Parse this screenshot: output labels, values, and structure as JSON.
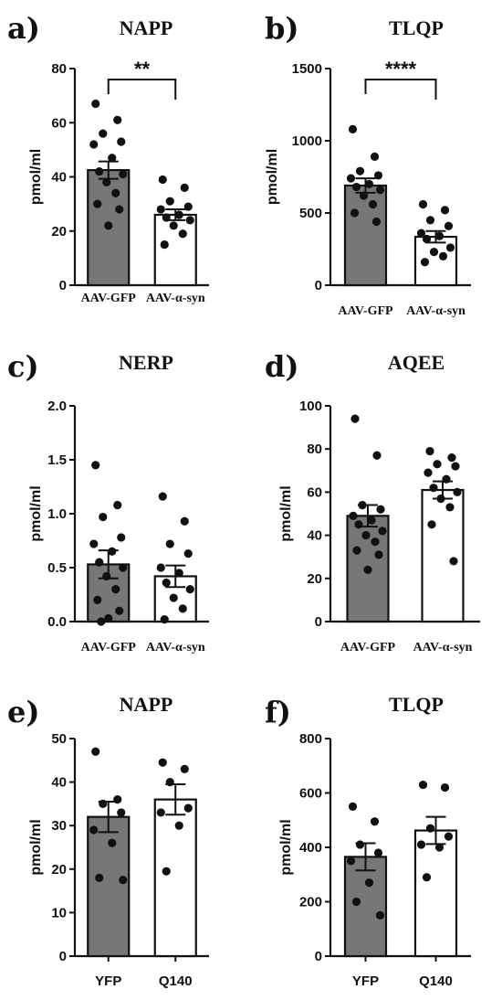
{
  "chart_data": [
    {
      "letter": "a)",
      "title": "NAPP",
      "type": "bar",
      "ylabel": "pmol/ml",
      "ylim": [
        0,
        80
      ],
      "yticks": [
        0,
        20,
        40,
        60,
        80
      ],
      "categories": [
        "AAV-GFP",
        "AAV-α-syn"
      ],
      "cat_style": "serif",
      "means": [
        42.5,
        26
      ],
      "sem": [
        3.2,
        2
      ],
      "bar_fill": [
        "#777777",
        "#ffffff"
      ],
      "points": [
        [
          67,
          61,
          56,
          53,
          52,
          47,
          42,
          41,
          38,
          34,
          30,
          28,
          22
        ],
        [
          39,
          36,
          31,
          29,
          28,
          26,
          25,
          24,
          22,
          19,
          15
        ]
      ],
      "significance": "**"
    },
    {
      "letter": "b)",
      "title": "TLQP",
      "type": "bar",
      "ylabel": "pmol/ml",
      "ylim": [
        0,
        1500
      ],
      "yticks": [
        0,
        500,
        1000,
        1500
      ],
      "categories": [
        "AAV-GFP",
        "AAV-α-syn"
      ],
      "cat_style": "serif",
      "means": [
        690,
        335
      ],
      "sem": [
        50,
        40
      ],
      "bar_fill": [
        "#777777",
        "#ffffff"
      ],
      "points": [
        [
          1080,
          890,
          790,
          760,
          740,
          700,
          680,
          660,
          620,
          560,
          500,
          440
        ],
        [
          560,
          520,
          450,
          410,
          360,
          340,
          320,
          260,
          230,
          200,
          160
        ]
      ],
      "significance": "****"
    },
    {
      "letter": "c)",
      "title": "NERP",
      "type": "bar",
      "ylabel": "pmol/ml",
      "ylim": [
        0,
        2.0
      ],
      "yticks": [
        "0.0",
        "0.5",
        "1.0",
        "1.5",
        "2.0"
      ],
      "categories": [
        "AAV-GFP",
        "AAV-α-syn"
      ],
      "cat_style": "serif",
      "means": [
        0.53,
        0.42
      ],
      "sem": [
        0.13,
        0.1
      ],
      "bar_fill": [
        "#777777",
        "#ffffff"
      ],
      "points": [
        [
          1.45,
          1.08,
          0.97,
          0.78,
          0.72,
          0.65,
          0.55,
          0.5,
          0.42,
          0.3,
          0.2,
          0.1,
          0.03,
          0.0
        ],
        [
          1.16,
          0.93,
          0.72,
          0.63,
          0.5,
          0.45,
          0.36,
          0.3,
          0.22,
          0.12,
          0.02
        ]
      ],
      "significance": ""
    },
    {
      "letter": "d)",
      "title": "AQEE",
      "type": "bar",
      "ylabel": "pmol/ml",
      "ylim": [
        0,
        100
      ],
      "yticks": [
        0,
        20,
        40,
        60,
        80,
        100
      ],
      "categories": [
        "AAV-GFP",
        "AAV-α-syn"
      ],
      "cat_style": "serif",
      "means": [
        49,
        61
      ],
      "sem": [
        5,
        4
      ],
      "bar_fill": [
        "#777777",
        "#ffffff"
      ],
      "points": [
        [
          94,
          77,
          54,
          52,
          49,
          47,
          45,
          42,
          40,
          37,
          33,
          31,
          24
        ],
        [
          79,
          76,
          73,
          72,
          69,
          66,
          62,
          60,
          57,
          53,
          45,
          28
        ]
      ],
      "significance": ""
    },
    {
      "letter": "e)",
      "title": "NAPP",
      "type": "bar",
      "ylabel": "pmol/ml",
      "ylim": [
        0,
        50
      ],
      "yticks": [
        0,
        10,
        20,
        30,
        40,
        50
      ],
      "categories": [
        "YFP",
        "Q140"
      ],
      "cat_style": "sans",
      "means": [
        32,
        36
      ],
      "sem": [
        3.5,
        3.5
      ],
      "bar_fill": [
        "#777777",
        "#ffffff"
      ],
      "points": [
        [
          47,
          36,
          35,
          33,
          29,
          26,
          18,
          17.5
        ],
        [
          44.5,
          43,
          40,
          34,
          33,
          30,
          19.5
        ]
      ],
      "significance": ""
    },
    {
      "letter": "f)",
      "title": "TLQP",
      "type": "bar",
      "ylabel": "pmol/ml",
      "ylim": [
        0,
        800
      ],
      "yticks": [
        0,
        200,
        400,
        600,
        800
      ],
      "categories": [
        "YFP",
        "Q140"
      ],
      "cat_style": "sans",
      "means": [
        365,
        462
      ],
      "sem": [
        50,
        50
      ],
      "bar_fill": [
        "#777777",
        "#ffffff"
      ],
      "points": [
        [
          550,
          495,
          410,
          380,
          350,
          270,
          200,
          150
        ],
        [
          630,
          620,
          470,
          440,
          410,
          400,
          290
        ]
      ],
      "significance": ""
    }
  ]
}
